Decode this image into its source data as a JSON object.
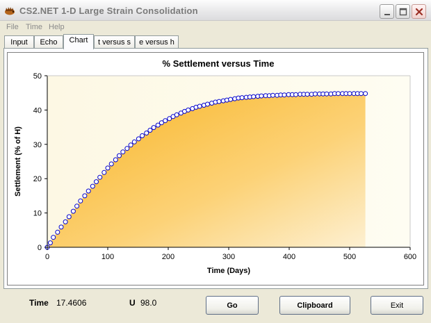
{
  "window": {
    "title": "CS2.NET  1-D Large Strain Consolidation",
    "icon": "hedgehog-app-icon"
  },
  "menu": [
    "File",
    "Time",
    "Help"
  ],
  "tabs": [
    {
      "label": "Input"
    },
    {
      "label": "Echo"
    },
    {
      "label": "Chart"
    },
    {
      "label": "t versus s"
    },
    {
      "label": "e versus h"
    }
  ],
  "active_tab": "Chart",
  "chart_data": {
    "type": "area",
    "title": "% Settlement versus Time",
    "xlabel": "Time (Days)",
    "ylabel": "Settlement (% of H)",
    "xlim": [
      0,
      600
    ],
    "ylim": [
      0,
      50
    ],
    "xticks": [
      0,
      100,
      200,
      300,
      400,
      500,
      600
    ],
    "yticks": [
      0,
      10,
      20,
      30,
      40,
      50
    ],
    "grid": false,
    "legend": "none",
    "fill_color": "#f9b932",
    "marker_color": "#0000cc",
    "series": [
      {
        "x": [
          0,
          5,
          10,
          17,
          23,
          30,
          36,
          43,
          49,
          55,
          62,
          68,
          75,
          81,
          87,
          94,
          100,
          106,
          113,
          119,
          125,
          132,
          138,
          144,
          151,
          157,
          164,
          170,
          176,
          183,
          189,
          195,
          202,
          208,
          214,
          221,
          227,
          233,
          240,
          246,
          252,
          259,
          265,
          272,
          278,
          284,
          291,
          297,
          303,
          310,
          316,
          322,
          329,
          335,
          341,
          348,
          354,
          361,
          367,
          373,
          380,
          386,
          392,
          399,
          405,
          411,
          418,
          424,
          430,
          437,
          443,
          450,
          456,
          462,
          469,
          475,
          481,
          488,
          494,
          500,
          507,
          513,
          519,
          526
        ],
        "y": [
          0,
          1.3,
          2.9,
          4.4,
          5.9,
          7.4,
          8.9,
          10.5,
          12.0,
          13.5,
          15.0,
          16.4,
          17.8,
          19.1,
          20.4,
          21.8,
          23.1,
          24.3,
          25.5,
          26.7,
          27.8,
          28.8,
          29.8,
          30.7,
          31.6,
          32.5,
          33.3,
          34.1,
          34.9,
          35.6,
          36.3,
          36.9,
          37.5,
          38.1,
          38.6,
          39.1,
          39.6,
          40.0,
          40.4,
          40.8,
          41.1,
          41.4,
          41.7,
          42.0,
          42.3,
          42.5,
          42.7,
          42.9,
          43.1,
          43.3,
          43.5,
          43.6,
          43.7,
          43.8,
          43.9,
          44.0,
          44.1,
          44.2,
          44.2,
          44.3,
          44.3,
          44.4,
          44.4,
          44.5,
          44.5,
          44.5,
          44.6,
          44.6,
          44.6,
          44.6,
          44.7,
          44.7,
          44.7,
          44.7,
          44.7,
          44.8,
          44.8,
          44.8,
          44.8,
          44.8,
          44.8,
          44.8,
          44.8,
          44.8
        ]
      }
    ]
  },
  "status": {
    "time_label": "Time",
    "time_value": "17.4606",
    "u_label": "U",
    "u_value": "98.0"
  },
  "buttons": {
    "go": "Go",
    "clipboard": "Clipboard",
    "exit": "Exit"
  }
}
